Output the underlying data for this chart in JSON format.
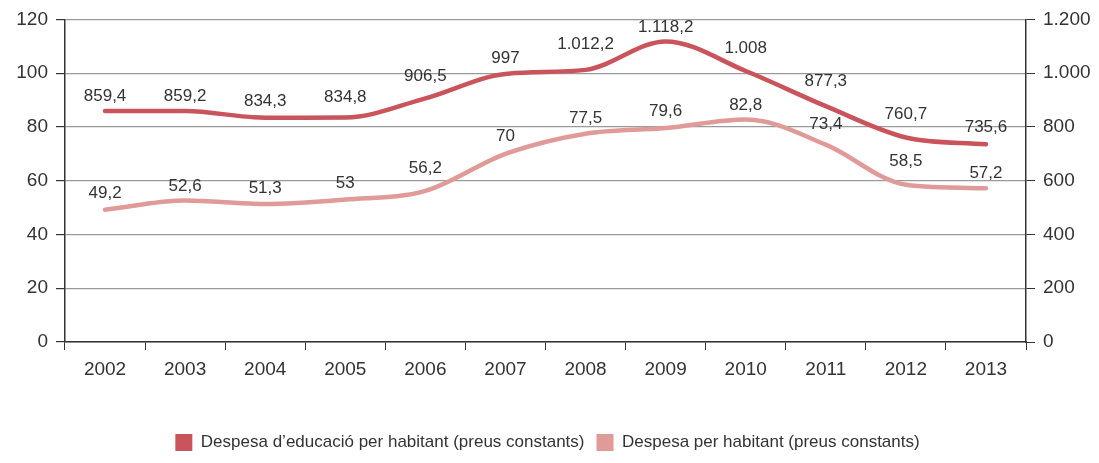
{
  "chart_data": {
    "type": "line",
    "categories": [
      "2002",
      "2003",
      "2004",
      "2005",
      "2006",
      "2007",
      "2008",
      "2009",
      "2010",
      "2011",
      "2012",
      "2013"
    ],
    "series": [
      {
        "name": "Despesa d’educació per habitant (preus constants)",
        "color": "#c9545c",
        "axis": "y2",
        "values": [
          859.4,
          859.2,
          834.3,
          834.8,
          906.5,
          997,
          1012.2,
          1118.2,
          1008,
          877.3,
          760.7,
          735.6
        ],
        "value_labels": [
          "859,4",
          "859,2",
          "834,3",
          "834,8",
          "906,5",
          "997",
          "1.012,2",
          "1.118,2",
          "1.008",
          "877,3",
          "760,7",
          "735,6"
        ]
      },
      {
        "name": "Despesa per habitant (preus constants)",
        "color": "#e09a98",
        "values": [
          49.2,
          52.6,
          51.3,
          53,
          56.2,
          70,
          77.5,
          79.6,
          82.8,
          73.4,
          58.5,
          57.2
        ],
        "value_labels": [
          "49,2",
          "52,6",
          "51,3",
          "53",
          "56,2",
          "70",
          "77,5",
          "79,6",
          "82,8",
          "73,4",
          "58,5",
          "57,2"
        ]
      }
    ],
    "ylim": [
      0,
      120
    ],
    "yticks": [
      0,
      20,
      40,
      60,
      80,
      100,
      120
    ],
    "y2lim": [
      0,
      1200
    ],
    "y2ticks": [
      0,
      200,
      400,
      600,
      800,
      {
        "value": 1000,
        "label": "1.000"
      },
      {
        "value": 1200,
        "label": "1.200"
      }
    ],
    "grid": "y",
    "legend": "bottom",
    "marker": "none"
  }
}
